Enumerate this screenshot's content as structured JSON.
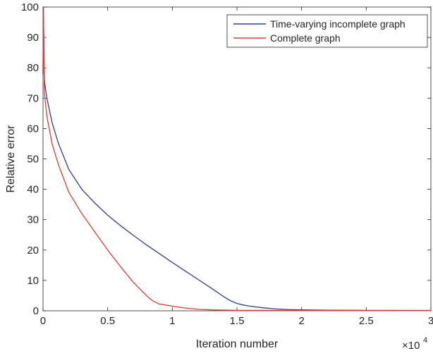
{
  "chart_data": {
    "type": "line",
    "xlabel": "Iteration number",
    "ylabel": "Relative error",
    "xlim": [
      0,
      30000
    ],
    "ylim": [
      0,
      100
    ],
    "x_ticks": [
      0,
      5000,
      10000,
      15000,
      20000,
      25000,
      30000
    ],
    "x_tick_labels": [
      "0",
      "0.5",
      "1",
      "1.5",
      "2",
      "2.5",
      "3"
    ],
    "x_exponent_label": "×10",
    "x_exponent_power": "4",
    "y_ticks": [
      0,
      10,
      20,
      30,
      40,
      50,
      60,
      70,
      80,
      90,
      100
    ],
    "y_tick_labels": [
      "0",
      "10",
      "20",
      "30",
      "40",
      "50",
      "60",
      "70",
      "80",
      "90",
      "100"
    ],
    "grid": false,
    "legend_position": "top-right",
    "series": [
      {
        "name": "Time-varying incomplete graph",
        "color": "#2e3f9a",
        "x": [
          0,
          30,
          100,
          300,
          700,
          1200,
          2000,
          3000,
          4000,
          5000,
          6000,
          7000,
          8000,
          9000,
          10000,
          11000,
          12000,
          13000,
          14000,
          14500,
          15000,
          15500,
          16000,
          17000,
          18000,
          19000,
          20000,
          22000,
          25000,
          30000
        ],
        "y": [
          78,
          100,
          76,
          70,
          62,
          55,
          46.5,
          40,
          35.5,
          31.5,
          28,
          24.8,
          21.7,
          18.8,
          15.9,
          13.1,
          10.3,
          7.5,
          4.6,
          3.3,
          2.4,
          1.9,
          1.5,
          1.0,
          0.6,
          0.4,
          0.3,
          0.2,
          0.15,
          0.1
        ]
      },
      {
        "name": "Complete graph",
        "color": "#e03c2f",
        "x": [
          0,
          30,
          100,
          300,
          700,
          1200,
          2000,
          3000,
          4000,
          5000,
          6000,
          7000,
          8000,
          8500,
          9000,
          9500,
          10000,
          11000,
          12000,
          13000,
          15000,
          20000,
          30000
        ],
        "y": [
          79,
          100,
          72,
          64,
          55,
          48,
          39,
          32,
          26,
          20,
          14.5,
          9.3,
          5,
          3.2,
          2.2,
          1.9,
          1.5,
          0.9,
          0.5,
          0.3,
          0.15,
          0.1,
          0.05
        ]
      }
    ]
  }
}
